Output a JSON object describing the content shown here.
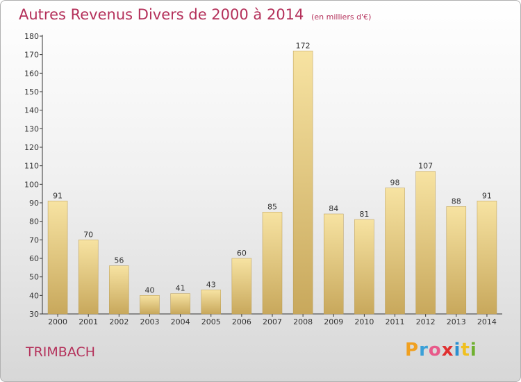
{
  "title": "Autres Revenus Divers de 2000 à 2014",
  "subtitle": "(en milliers d'€)",
  "commune": "TRIMBACH",
  "logo_text": "Proxiti",
  "colors": {
    "title": "#b4305a",
    "bar_light": "#f7e3a2",
    "bar_dark": "#c8a85c",
    "bar_edge": "#b89a52",
    "axis": "#333333"
  },
  "chart_data": {
    "type": "bar",
    "title": "Autres Revenus Divers de 2000 à 2014",
    "subtitle": "(en milliers d'€)",
    "categories": [
      "2000",
      "2001",
      "2002",
      "2003",
      "2004",
      "2005",
      "2006",
      "2007",
      "2008",
      "2009",
      "2010",
      "2011",
      "2012",
      "2013",
      "2014"
    ],
    "values": [
      91,
      70,
      56,
      40,
      41,
      43,
      60,
      85,
      172,
      84,
      81,
      98,
      107,
      88,
      91
    ],
    "ylim": [
      30,
      180
    ],
    "yticks": [
      30,
      40,
      50,
      60,
      70,
      80,
      90,
      100,
      110,
      120,
      130,
      140,
      150,
      160,
      170,
      180
    ],
    "grid": false,
    "legend": "none"
  }
}
